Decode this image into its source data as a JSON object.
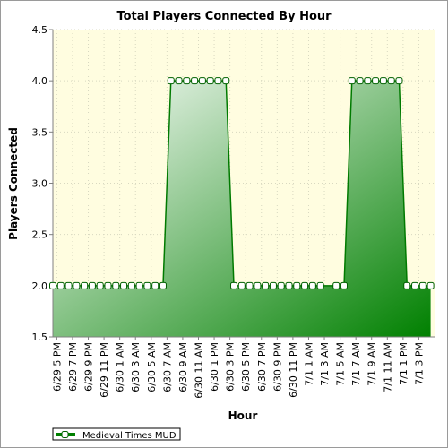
{
  "chart_data": {
    "type": "area",
    "title": "Total Players Connected By Hour",
    "xlabel": "Hour",
    "ylabel": "Players Connected",
    "ylim": [
      1.5,
      4.5
    ],
    "yticks": [
      "1.5",
      "2.0",
      "2.5",
      "3.0",
      "3.5",
      "4.0",
      "4.5"
    ],
    "categories": [
      "6/29 5 PM",
      "6/29 7 PM",
      "6/29 9 PM",
      "6/29 11 PM",
      "6/30 1 AM",
      "6/30 3 AM",
      "6/30 5 AM",
      "6/30 7 AM",
      "6/30 9 AM",
      "6/30 11 AM",
      "6/30 1 PM",
      "6/30 3 PM",
      "6/30 5 PM",
      "6/30 7 PM",
      "6/30 9 PM",
      "6/30 11 PM",
      "7/1 1 AM",
      "7/1 3 AM",
      "7/1 5 AM",
      "7/1 7 AM",
      "7/1 9 AM",
      "7/1 11 AM",
      "7/1 1 PM",
      "7/1 3 PM"
    ],
    "x": [
      0,
      1,
      2,
      3,
      4,
      5,
      6,
      7,
      8,
      9,
      10,
      11,
      12,
      13,
      14,
      15,
      16,
      17,
      18,
      19,
      20,
      21,
      22,
      23,
      24,
      25,
      26,
      27,
      28,
      29,
      30,
      31,
      32,
      33,
      34,
      36,
      37,
      38,
      39,
      40,
      41,
      42,
      43,
      44,
      45,
      46,
      47,
      48
    ],
    "series": [
      {
        "name": "Medieval Times MUD",
        "values": [
          2,
          2,
          2,
          2,
          2,
          2,
          2,
          2,
          2,
          2,
          2,
          2,
          2,
          2,
          2,
          4,
          4,
          4,
          4,
          4,
          4,
          4,
          4,
          2,
          2,
          2,
          2,
          2,
          2,
          2,
          2,
          2,
          2,
          2,
          2,
          2,
          2,
          4,
          4,
          4,
          4,
          4,
          4,
          4,
          2,
          2,
          2,
          2
        ],
        "color": "#008000"
      }
    ],
    "grid": true,
    "legend_position": "bottom-left",
    "colors": {
      "background": "#fffde0",
      "fill_light": "#e8f4e8",
      "fill_dark": "#008000",
      "line": "#007a00"
    }
  }
}
